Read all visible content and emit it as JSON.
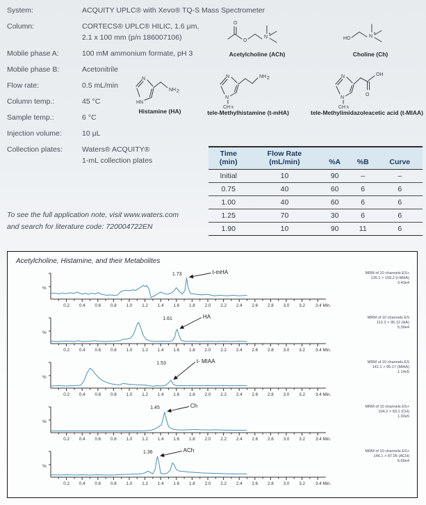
{
  "specs": [
    {
      "label": "System:",
      "lines": [
        "ACQUITY UPLC® with Xevo® TQ-S Mass Spectrometer"
      ]
    },
    {
      "label": "Column:",
      "lines": [
        "CORTECS® UPLC® HILIC, 1.6 μm,",
        "2.1 x 100 mm (p/n 186007106)"
      ]
    },
    {
      "label": "Mobile phase A:",
      "lines": [
        "100 mM ammonium formate, pH 3"
      ]
    },
    {
      "label": "Mobile phase B:",
      "lines": [
        "Acetonitrile"
      ]
    },
    {
      "label": "Flow rate:",
      "lines": [
        "0.5 mL/min"
      ]
    },
    {
      "label": "Column temp.:",
      "lines": [
        "45 °C"
      ]
    },
    {
      "label": "Sample temp.:",
      "lines": [
        "6 °C"
      ]
    },
    {
      "label": "Injection volume:",
      "lines": [
        "10 μL"
      ]
    },
    {
      "label": "Collection plates:",
      "lines": [
        "Waters® ACQUITY®",
        "1-mL collection plates"
      ]
    }
  ],
  "note": {
    "line1": "To see the full application note, visit www.waters.com",
    "line2": "and search for literature code: 720004722EN"
  },
  "structures": [
    {
      "id": "acetylcholine",
      "caption": "Acetylcholine (ACh)"
    },
    {
      "id": "choline",
      "caption": "Choline (Ch)"
    },
    {
      "id": "histamine",
      "caption": "Histamine (HA)"
    },
    {
      "id": "t-mha",
      "caption": "tele-Methylhistamine (t-mHA)"
    },
    {
      "id": "t-miaa",
      "caption": "tele-Methylimidazoleacetic acid (t-MIAA)"
    }
  ],
  "gradient_table": {
    "headers": [
      [
        "Time",
        "(min)"
      ],
      [
        "Flow Rate",
        "(mL/min)"
      ],
      [
        "%A"
      ],
      [
        "%B"
      ],
      [
        "Curve"
      ]
    ],
    "rows": [
      [
        "Initial",
        "10",
        "90",
        "–",
        "–"
      ],
      [
        "0.75",
        "40",
        "60",
        "6",
        "6"
      ],
      [
        "1.00",
        "40",
        "60",
        "6",
        "6"
      ],
      [
        "1.25",
        "70",
        "30",
        "6",
        "6"
      ],
      [
        "1.90",
        "10",
        "90",
        "11",
        "6"
      ]
    ]
  },
  "chart_data": {
    "type": "line",
    "title": "Acetylcholine, Histamine, and their Metabolites",
    "ylabel": "%",
    "x_unit": "Min.",
    "xlim": [
      0,
      3.5
    ],
    "x_major_ticks": [
      0.2,
      0.4,
      0.6,
      0.8,
      1.0,
      1.2,
      1.4,
      1.6,
      1.8,
      2.0,
      2.2,
      2.4,
      2.6,
      2.8,
      3.0,
      3.2,
      3.4
    ],
    "trace_color": "#4a8fb5",
    "traces": [
      {
        "compound": "t-mHA",
        "rt": 1.73,
        "rt_label": "1.73",
        "annotation": [
          "MRM of 10 channels ES+",
          "126.1 > 109.2 (t-MHA)",
          "3.43e4"
        ],
        "points": [
          [
            0,
            0.2
          ],
          [
            0.05,
            0.22
          ],
          [
            0.1,
            0.18
          ],
          [
            0.15,
            0.22
          ],
          [
            0.2,
            0.19
          ],
          [
            0.25,
            0.23
          ],
          [
            0.3,
            0.2
          ],
          [
            0.33,
            0.26
          ],
          [
            0.36,
            0.22
          ],
          [
            0.4,
            0.17
          ],
          [
            0.44,
            0.21
          ],
          [
            0.48,
            0.16
          ],
          [
            0.52,
            0.22
          ],
          [
            0.56,
            0.18
          ],
          [
            0.6,
            0.23
          ],
          [
            0.64,
            0.18
          ],
          [
            0.68,
            0.14
          ],
          [
            0.72,
            0.12
          ],
          [
            0.76,
            0.14
          ],
          [
            0.8,
            0.12
          ],
          [
            0.85,
            0.13
          ],
          [
            0.9,
            0.3
          ],
          [
            0.95,
            0.34
          ],
          [
            1.0,
            0.32
          ],
          [
            1.05,
            0.36
          ],
          [
            1.08,
            0.33
          ],
          [
            1.12,
            0.42
          ],
          [
            1.15,
            0.48
          ],
          [
            1.18,
            0.55
          ],
          [
            1.2,
            0.5
          ],
          [
            1.22,
            0.55
          ],
          [
            1.25,
            0.4
          ],
          [
            1.27,
            0.12
          ],
          [
            1.28,
            0.02
          ],
          [
            1.32,
            0.1
          ],
          [
            1.36,
            0.18
          ],
          [
            1.4,
            0.26
          ],
          [
            1.44,
            0.2
          ],
          [
            1.48,
            0.16
          ],
          [
            1.52,
            0.2
          ],
          [
            1.56,
            0.28
          ],
          [
            1.6,
            0.45
          ],
          [
            1.64,
            0.28
          ],
          [
            1.68,
            0.18
          ],
          [
            1.71,
            0.35
          ],
          [
            1.73,
            0.88
          ],
          [
            1.75,
            0.45
          ],
          [
            1.78,
            0.2
          ],
          [
            1.82,
            0.18
          ],
          [
            1.86,
            0.16
          ],
          [
            1.92,
            0.14
          ],
          [
            2.0,
            0.16
          ],
          [
            2.08,
            0.1
          ],
          [
            2.16,
            0.12
          ],
          [
            2.24,
            0.1
          ],
          [
            2.32,
            0.12
          ],
          [
            2.4,
            0.1
          ],
          [
            2.5,
            0.12
          ]
        ]
      },
      {
        "compound": "HA",
        "rt": 1.61,
        "rt_label": "1.61",
        "annotation": [
          "MRM of 10 channels ES",
          "112.2 > 95.12 (HA)",
          "5.39e4"
        ],
        "points": [
          [
            0,
            0.06
          ],
          [
            0.1,
            0.05
          ],
          [
            0.2,
            0.07
          ],
          [
            0.3,
            0.05
          ],
          [
            0.35,
            0.08
          ],
          [
            0.4,
            0.05
          ],
          [
            0.5,
            0.06
          ],
          [
            0.55,
            0.08
          ],
          [
            0.6,
            0.06
          ],
          [
            0.7,
            0.05
          ],
          [
            0.8,
            0.06
          ],
          [
            0.88,
            0.08
          ],
          [
            0.92,
            0.14
          ],
          [
            0.98,
            0.16
          ],
          [
            1.02,
            0.2
          ],
          [
            1.06,
            0.4
          ],
          [
            1.1,
            0.8
          ],
          [
            1.12,
            0.88
          ],
          [
            1.14,
            0.7
          ],
          [
            1.18,
            0.3
          ],
          [
            1.22,
            0.12
          ],
          [
            1.28,
            0.06
          ],
          [
            1.35,
            0.05
          ],
          [
            1.42,
            0.06
          ],
          [
            1.5,
            0.05
          ],
          [
            1.55,
            0.08
          ],
          [
            1.58,
            0.25
          ],
          [
            1.6,
            0.55
          ],
          [
            1.61,
            0.58
          ],
          [
            1.63,
            0.35
          ],
          [
            1.66,
            0.1
          ],
          [
            1.72,
            0.05
          ],
          [
            1.8,
            0.06
          ],
          [
            1.9,
            0.05
          ],
          [
            2.0,
            0.06
          ],
          [
            2.1,
            0.05
          ],
          [
            2.2,
            0.06
          ],
          [
            2.3,
            0.05
          ],
          [
            2.4,
            0.06
          ],
          [
            2.5,
            0.05
          ]
        ]
      },
      {
        "compound": "t- MIAA",
        "rt": 1.53,
        "rt_label": "1.53",
        "annotation": [
          "MRM of 10 channels ES",
          "141.1 > 95.17 (MIAA)",
          "1.14e5"
        ],
        "points": [
          [
            0,
            0.05
          ],
          [
            0.1,
            0.06
          ],
          [
            0.2,
            0.05
          ],
          [
            0.3,
            0.06
          ],
          [
            0.38,
            0.08
          ],
          [
            0.42,
            0.25
          ],
          [
            0.46,
            0.6
          ],
          [
            0.5,
            0.82
          ],
          [
            0.53,
            0.75
          ],
          [
            0.56,
            0.6
          ],
          [
            0.6,
            0.45
          ],
          [
            0.65,
            0.3
          ],
          [
            0.7,
            0.22
          ],
          [
            0.76,
            0.15
          ],
          [
            0.82,
            0.11
          ],
          [
            0.88,
            0.1
          ],
          [
            0.92,
            0.16
          ],
          [
            0.96,
            0.14
          ],
          [
            1.0,
            0.12
          ],
          [
            1.05,
            0.11
          ],
          [
            1.1,
            0.1
          ],
          [
            1.15,
            0.1
          ],
          [
            1.2,
            0.09
          ],
          [
            1.25,
            0.06
          ],
          [
            1.3,
            0.04
          ],
          [
            1.35,
            0.06
          ],
          [
            1.4,
            0.05
          ],
          [
            1.46,
            0.07
          ],
          [
            1.5,
            0.18
          ],
          [
            1.53,
            0.3
          ],
          [
            1.56,
            0.12
          ],
          [
            1.6,
            0.06
          ],
          [
            1.7,
            0.06
          ],
          [
            1.8,
            0.07
          ],
          [
            1.9,
            0.06
          ],
          [
            2.0,
            0.07
          ],
          [
            2.1,
            0.06
          ],
          [
            2.2,
            0.07
          ],
          [
            2.3,
            0.06
          ],
          [
            2.4,
            0.07
          ],
          [
            2.5,
            0.06
          ]
        ]
      },
      {
        "compound": "Ch",
        "rt": 1.45,
        "rt_label": "1.45",
        "annotation": [
          "MRM of 10 channels ES+",
          "104.2 > 60.1 (CH)",
          "1.30e5"
        ],
        "points": [
          [
            0,
            0.03
          ],
          [
            0.2,
            0.03
          ],
          [
            0.4,
            0.03
          ],
          [
            0.6,
            0.03
          ],
          [
            0.8,
            0.03
          ],
          [
            1.0,
            0.03
          ],
          [
            1.1,
            0.03
          ],
          [
            1.2,
            0.04
          ],
          [
            1.28,
            0.06
          ],
          [
            1.33,
            0.12
          ],
          [
            1.38,
            0.22
          ],
          [
            1.41,
            0.3
          ],
          [
            1.43,
            0.55
          ],
          [
            1.45,
            0.85
          ],
          [
            1.47,
            0.55
          ],
          [
            1.5,
            0.22
          ],
          [
            1.54,
            0.12
          ],
          [
            1.6,
            0.08
          ],
          [
            1.68,
            0.07
          ],
          [
            1.76,
            0.08
          ],
          [
            1.84,
            0.09
          ],
          [
            1.9,
            0.08
          ],
          [
            2.0,
            0.07
          ],
          [
            2.1,
            0.08
          ],
          [
            2.2,
            0.07
          ],
          [
            2.3,
            0.06
          ],
          [
            2.4,
            0.06
          ],
          [
            2.5,
            0.06
          ]
        ]
      },
      {
        "compound": "ACh",
        "rt": 1.36,
        "rt_label": "1.36",
        "annotation": [
          "MRM of 10 channels ES+",
          "146.1 > 87.05 (ACH)",
          "6.69e4"
        ],
        "points": [
          [
            0,
            0.06
          ],
          [
            0.1,
            0.05
          ],
          [
            0.2,
            0.06
          ],
          [
            0.3,
            0.05
          ],
          [
            0.4,
            0.06
          ],
          [
            0.5,
            0.05
          ],
          [
            0.6,
            0.06
          ],
          [
            0.7,
            0.05
          ],
          [
            0.8,
            0.05
          ],
          [
            0.9,
            0.07
          ],
          [
            1.0,
            0.08
          ],
          [
            1.05,
            0.09
          ],
          [
            1.1,
            0.1
          ],
          [
            1.15,
            0.1
          ],
          [
            1.2,
            0.14
          ],
          [
            1.24,
            0.22
          ],
          [
            1.27,
            0.16
          ],
          [
            1.3,
            0.1
          ],
          [
            1.33,
            0.3
          ],
          [
            1.35,
            0.75
          ],
          [
            1.36,
            0.85
          ],
          [
            1.38,
            0.55
          ],
          [
            1.4,
            0.12
          ],
          [
            1.44,
            0.1
          ],
          [
            1.48,
            0.12
          ],
          [
            1.52,
            0.25
          ],
          [
            1.55,
            0.58
          ],
          [
            1.57,
            0.5
          ],
          [
            1.6,
            0.28
          ],
          [
            1.64,
            0.22
          ],
          [
            1.7,
            0.2
          ],
          [
            1.76,
            0.18
          ],
          [
            1.84,
            0.16
          ],
          [
            1.92,
            0.14
          ],
          [
            2.0,
            0.13
          ],
          [
            2.1,
            0.12
          ],
          [
            2.2,
            0.11
          ],
          [
            2.3,
            0.1
          ],
          [
            2.4,
            0.1
          ],
          [
            2.5,
            0.1
          ]
        ]
      }
    ]
  }
}
